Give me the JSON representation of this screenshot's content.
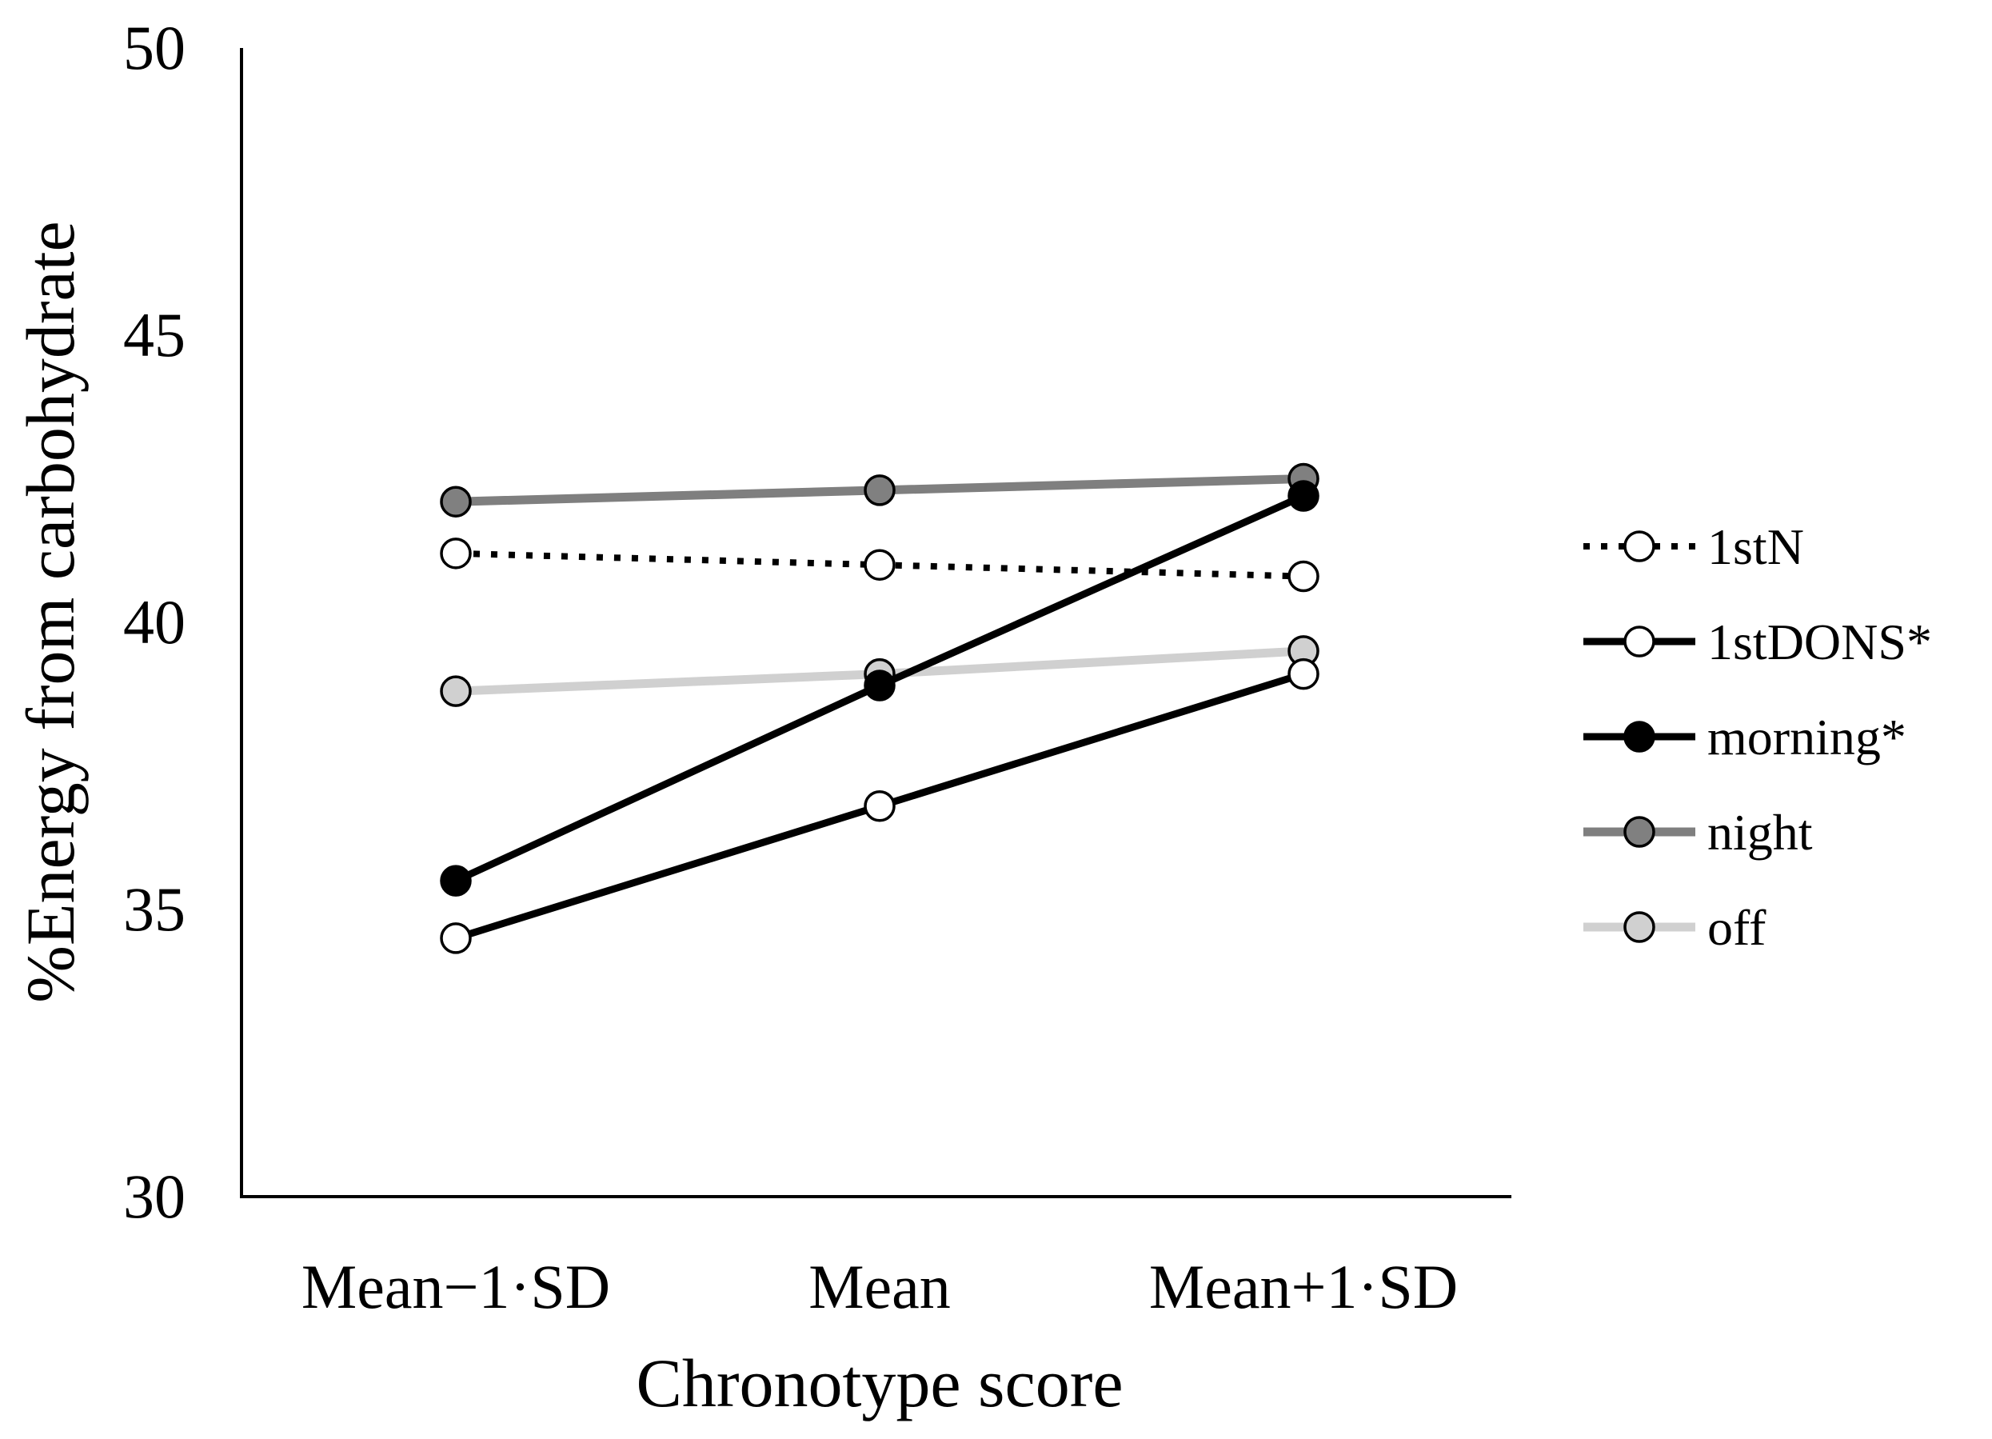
{
  "chart_data": {
    "type": "line",
    "title": "",
    "xlabel": "Chronotype score",
    "ylabel": "%Energy from carbohydrate",
    "categories": [
      "Mean−1·SD",
      "Mean",
      "Mean+1·SD"
    ],
    "ylim": [
      30,
      50
    ],
    "yticks": [
      "30",
      "35",
      "40",
      "45",
      "50"
    ],
    "grid": false,
    "legend_position": "right",
    "series": [
      {
        "name": "1stN",
        "values": [
          41.2,
          41.0,
          40.8
        ],
        "line_color": "#000000",
        "line_style": "dotted",
        "marker_fill": "#ffffff"
      },
      {
        "name": "1stDONS*",
        "values": [
          34.5,
          36.8,
          39.1
        ],
        "line_color": "#000000",
        "line_style": "solid",
        "marker_fill": "#ffffff"
      },
      {
        "name": "morning*",
        "values": [
          35.5,
          38.9,
          42.2
        ],
        "line_color": "#000000",
        "line_style": "solid",
        "marker_fill": "#000000"
      },
      {
        "name": "night",
        "values": [
          42.1,
          42.3,
          42.5
        ],
        "line_color": "#7f7f7f",
        "line_style": "solid",
        "marker_fill": "#808080"
      },
      {
        "name": "off",
        "values": [
          38.8,
          39.1,
          39.5
        ],
        "line_color": "#d0d0d0",
        "line_style": "solid",
        "marker_fill": "#d0d0d0"
      }
    ]
  }
}
